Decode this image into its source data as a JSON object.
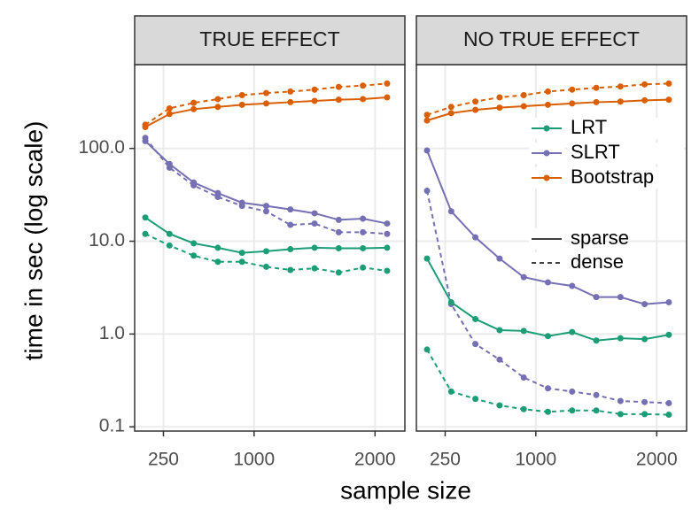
{
  "chart_data": {
    "type": "line",
    "xlabel": "sample size",
    "ylabel": "time in sec (log scale)",
    "log_y": true,
    "grid": true,
    "x": [
      100,
      300,
      500,
      700,
      900,
      1100,
      1300,
      1500,
      1700,
      1900,
      2100
    ],
    "xlim": [
      12,
      2247
    ],
    "xticks": [
      250,
      1000,
      2000
    ],
    "ylim": [
      0.09,
      800
    ],
    "yticks": [
      {
        "value": 0.1,
        "label": "0.1"
      },
      {
        "value": 1,
        "label": "1.0"
      },
      {
        "value": 10,
        "label": "10.0"
      },
      {
        "value": 100,
        "label": "100.0"
      }
    ],
    "legend": {
      "colors": [
        {
          "name": "LRT",
          "color": "#1b9e77"
        },
        {
          "name": "SLRT",
          "color": "#7570b3"
        },
        {
          "name": "Bootstrap",
          "color": "#d95f02"
        }
      ],
      "linetypes": [
        {
          "name": "sparse",
          "dash": "none"
        },
        {
          "name": "dense",
          "dash": "5,4"
        }
      ]
    },
    "facets": [
      {
        "title": "TRUE EFFECT",
        "series": [
          {
            "name": "Bootstrap",
            "linetype": "sparse",
            "color": "#d95f02",
            "values": [
              170,
              235,
              265,
              280,
              295,
              305,
              315,
              325,
              335,
              340,
              355
            ]
          },
          {
            "name": "Bootstrap",
            "linetype": "dense",
            "color": "#d95f02",
            "values": [
              180,
              270,
              310,
              340,
              375,
              395,
              410,
              430,
              460,
              475,
              500
            ]
          },
          {
            "name": "SLRT",
            "linetype": "sparse",
            "color": "#7570b3",
            "values": [
              120,
              68,
              43,
              33,
              26,
              24,
              22,
              20,
              17,
              17.5,
              15.5
            ]
          },
          {
            "name": "SLRT",
            "linetype": "dense",
            "color": "#7570b3",
            "values": [
              130,
              62,
              40,
              30,
              24,
              21,
              15,
              15.5,
              12.5,
              12.5,
              12
            ]
          },
          {
            "name": "LRT",
            "linetype": "sparse",
            "color": "#1b9e77",
            "values": [
              18,
              12,
              9.5,
              8.5,
              7.5,
              7.8,
              8.2,
              8.5,
              8.4,
              8.4,
              8.5
            ]
          },
          {
            "name": "LRT",
            "linetype": "dense",
            "color": "#1b9e77",
            "values": [
              12,
              9,
              7,
              6,
              6,
              5.3,
              4.9,
              5.1,
              4.6,
              5.2,
              4.8
            ]
          }
        ]
      },
      {
        "title": "NO TRUE EFFECT",
        "series": [
          {
            "name": "Bootstrap",
            "linetype": "sparse",
            "color": "#d95f02",
            "values": [
              200,
              240,
              260,
              275,
              285,
              295,
              305,
              315,
              320,
              330,
              335
            ]
          },
          {
            "name": "Bootstrap",
            "linetype": "dense",
            "color": "#d95f02",
            "values": [
              230,
              280,
              320,
              355,
              375,
              410,
              430,
              450,
              465,
              490,
              500
            ]
          },
          {
            "name": "SLRT",
            "linetype": "sparse",
            "color": "#7570b3",
            "values": [
              95,
              21,
              11,
              6.5,
              4.1,
              3.6,
              3.3,
              2.5,
              2.5,
              2.1,
              2.2
            ]
          },
          {
            "name": "SLRT",
            "linetype": "dense",
            "color": "#7570b3",
            "values": [
              35,
              2.1,
              0.78,
              0.53,
              0.34,
              0.26,
              0.24,
              0.22,
              0.19,
              0.185,
              0.18
            ]
          },
          {
            "name": "LRT",
            "linetype": "sparse",
            "color": "#1b9e77",
            "values": [
              6.5,
              2.2,
              1.45,
              1.1,
              1.08,
              0.95,
              1.05,
              0.85,
              0.9,
              0.88,
              0.98
            ]
          },
          {
            "name": "LRT",
            "linetype": "dense",
            "color": "#1b9e77",
            "values": [
              0.68,
              0.24,
              0.2,
              0.17,
              0.155,
              0.145,
              0.15,
              0.15,
              0.137,
              0.137,
              0.135
            ]
          }
        ]
      }
    ]
  }
}
